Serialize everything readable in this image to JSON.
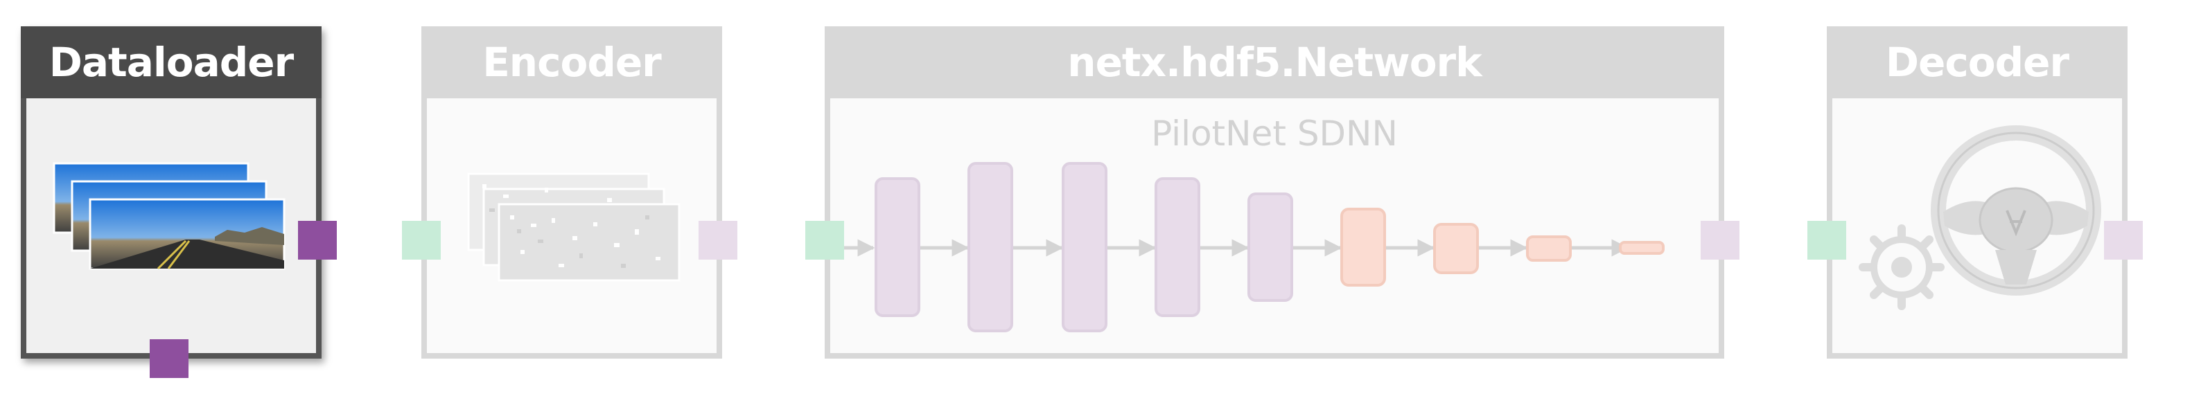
{
  "blocks": {
    "dataloader": {
      "title": "Dataloader"
    },
    "encoder": {
      "title": "Encoder"
    },
    "network": {
      "title": "netx.hdf5.Network",
      "subtitle": "PilotNet SDNN"
    },
    "decoder": {
      "title": "Decoder"
    }
  },
  "colors": {
    "active_header": "#4a4a4a",
    "active_border": "#555555",
    "active_body": "#f0f0f0",
    "inactive_frame": "#d8d8d8",
    "inactive_body": "#fafafa",
    "port_out_active": "#8e4f9e",
    "port_in_faded": "#c8ecd8",
    "port_out_faded": "#e8dcea",
    "layer_purple": "#e8dcea",
    "layer_orange": "#fbdcd2"
  },
  "icons": [
    "image-stack-icon",
    "spike-image-stack-icon",
    "gear-icon",
    "steering-wheel-icon"
  ]
}
